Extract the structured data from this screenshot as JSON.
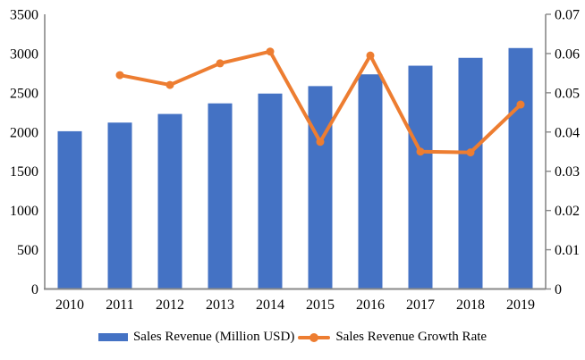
{
  "chart_data": {
    "type": "combo",
    "title": "",
    "categories": [
      "2010",
      "2011",
      "2012",
      "2013",
      "2014",
      "2015",
      "2016",
      "2017",
      "2018",
      "2019"
    ],
    "series": [
      {
        "name": "Sales Revenue (Million USD)",
        "type": "bar",
        "axis": "left",
        "color": "#4472C4",
        "values": [
          2010,
          2120,
          2230,
          2365,
          2490,
          2585,
          2735,
          2845,
          2945,
          3070
        ]
      },
      {
        "name": "Sales Revenue Growth Rate",
        "type": "line",
        "axis": "right",
        "color": "#ED7D31",
        "values": [
          null,
          0.0545,
          0.052,
          0.0575,
          0.0605,
          0.0375,
          0.0595,
          0.035,
          0.0348,
          0.047
        ]
      }
    ],
    "left_axis": {
      "min": 0,
      "max": 3500,
      "step": 500,
      "tick_labels": [
        "0",
        "500",
        "1000",
        "1500",
        "2000",
        "2500",
        "3000",
        "3500"
      ]
    },
    "right_axis": {
      "min": 0,
      "max": 0.07,
      "step": 0.01,
      "tick_labels": [
        "0",
        "0.01",
        "0.02",
        "0.03",
        "0.04",
        "0.05",
        "0.06",
        "0.07"
      ]
    },
    "legend": {
      "position": "bottom",
      "entries": [
        {
          "label": "Sales Revenue (Million USD)",
          "swatch": "bar",
          "color": "#4472C4"
        },
        {
          "label": "Sales Revenue Growth Rate",
          "swatch": "line-marker",
          "color": "#ED7D31"
        }
      ]
    },
    "grid": false,
    "background": "#FFFFFF",
    "axis_color": "#898989",
    "text_color": "#000000"
  }
}
